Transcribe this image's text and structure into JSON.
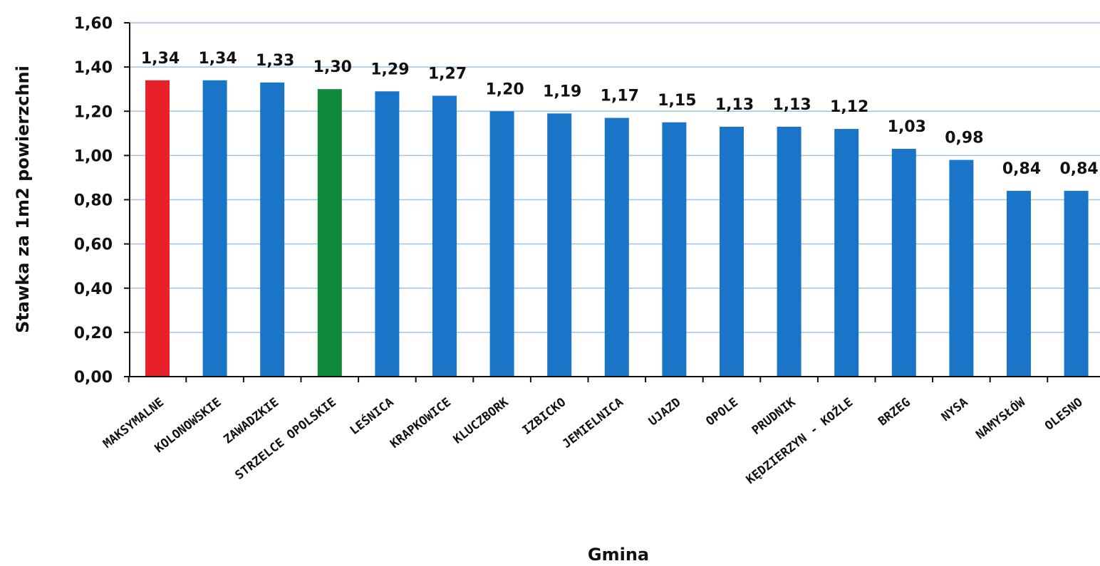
{
  "chart_data": {
    "type": "bar",
    "title": "",
    "xlabel": "Gmina",
    "ylabel": "Stawka za 1m2 powierzchni",
    "ylim": [
      0,
      1.6
    ],
    "yticks": [
      "0,00",
      "0,20",
      "0,40",
      "0,60",
      "0,80",
      "1,00",
      "1,20",
      "1,40",
      "1,60"
    ],
    "grid": true,
    "legend": "none",
    "categories": [
      "MAKSYMALNE",
      "KOLONOWSKIE",
      "ZAWADZKIE",
      "STRZELCE OPOLSKIE",
      "LEŚNICA",
      "KRAPKOWICE",
      "KLUCZBORK",
      "IZBICKO",
      "JEMIELNICA",
      "UJAZD",
      "OPOLE",
      "PRUDNIK",
      "KĘDZIERZYN - KOŹLE",
      "BRZEG",
      "NYSA",
      "NAMYSŁÓW",
      "OLESNO"
    ],
    "values": [
      1.34,
      1.34,
      1.33,
      1.3,
      1.29,
      1.27,
      1.2,
      1.19,
      1.17,
      1.15,
      1.13,
      1.13,
      1.12,
      1.03,
      0.98,
      0.84,
      0.84
    ],
    "value_labels": [
      "1,34",
      "1,34",
      "1,33",
      "1,30",
      "1,29",
      "1,27",
      "1,20",
      "1,19",
      "1,17",
      "1,15",
      "1,13",
      "1,13",
      "1,12",
      "1,03",
      "0,98",
      "0,84",
      "0,84"
    ],
    "bar_colors": [
      "#e8202a",
      "#1a75c9",
      "#1a75c9",
      "#0e8a3a",
      "#1a75c9",
      "#1a75c9",
      "#1a75c9",
      "#1a75c9",
      "#1a75c9",
      "#1a75c9",
      "#1a75c9",
      "#1a75c9",
      "#1a75c9",
      "#1a75c9",
      "#1a75c9",
      "#1a75c9",
      "#1a75c9"
    ],
    "colors": {
      "default": "#1a75c9",
      "highlight_max": "#e8202a",
      "highlight": "#0e8a3a"
    }
  }
}
